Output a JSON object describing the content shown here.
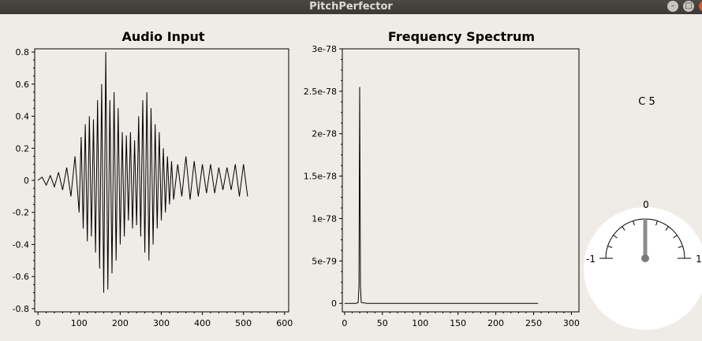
{
  "window": {
    "title": "PitchPerfector",
    "min_glyph": "–",
    "max_glyph": "□",
    "close_glyph": "×"
  },
  "note": "C 5",
  "chart_data": [
    {
      "type": "line",
      "title": "Audio Input",
      "xlabel": "",
      "ylabel": "",
      "xlim": [
        -8,
        610
      ],
      "ylim": [
        -0.82,
        0.82
      ],
      "x_ticks": [
        0,
        100,
        200,
        300,
        400,
        500,
        600
      ],
      "y_ticks": [
        0.8,
        0.6,
        0.4,
        0.2,
        0,
        -0.2,
        -0.4,
        -0.6,
        -0.8
      ],
      "series": [
        {
          "x": [
            0,
            10,
            20,
            30,
            40,
            50,
            60,
            70,
            80,
            90,
            100,
            105,
            110,
            115,
            120,
            125,
            130,
            135,
            140,
            145,
            150,
            155,
            160,
            165,
            170,
            175,
            180,
            185,
            190,
            195,
            200,
            205,
            210,
            215,
            220,
            225,
            230,
            235,
            240,
            245,
            250,
            255,
            260,
            265,
            270,
            275,
            280,
            285,
            290,
            295,
            300,
            305,
            310,
            315,
            320,
            325,
            330,
            340,
            350,
            360,
            370,
            380,
            390,
            400,
            410,
            420,
            430,
            440,
            450,
            460,
            470,
            480,
            490,
            500,
            510
          ],
          "y": [
            0,
            0.02,
            -0.03,
            0.03,
            -0.04,
            0.05,
            -0.06,
            0.08,
            -0.1,
            0.15,
            -0.2,
            0.27,
            -0.3,
            0.35,
            -0.38,
            0.4,
            -0.35,
            0.38,
            -0.45,
            0.5,
            -0.55,
            0.6,
            -0.7,
            0.8,
            -0.68,
            0.5,
            -0.58,
            0.55,
            -0.5,
            0.45,
            -0.4,
            0.3,
            -0.35,
            0.28,
            -0.25,
            0.3,
            -0.3,
            0.25,
            -0.28,
            0.4,
            -0.35,
            0.5,
            -0.45,
            0.55,
            -0.5,
            0.45,
            -0.4,
            0.35,
            -0.3,
            0.3,
            -0.25,
            0.2,
            -0.2,
            0.15,
            -0.15,
            0.12,
            -0.12,
            0.1,
            -0.1,
            0.15,
            -0.12,
            0.12,
            -0.1,
            0.1,
            -0.08,
            0.1,
            -0.08,
            0.08,
            -0.06,
            0.08,
            -0.06,
            0.1,
            -0.1,
            0.1,
            -0.1
          ]
        }
      ]
    },
    {
      "type": "line",
      "title": "Frequency Spectrum",
      "xlabel": "",
      "ylabel": "",
      "xlim": [
        -3,
        310
      ],
      "ylim": [
        -1e-79,
        3e-78
      ],
      "x_ticks": [
        0,
        50,
        100,
        150,
        200,
        250,
        300
      ],
      "y_ticks": [
        3e-78,
        2.5e-78,
        2e-78,
        1.5e-78,
        1e-78,
        5e-79,
        0
      ],
      "y_tick_labels": [
        "3e-78",
        "2.5e-78",
        "2e-78",
        "1.5e-78",
        "1e-78",
        "5e-79",
        "0"
      ],
      "series": [
        {
          "x": [
            0,
            15,
            18,
            19,
            20,
            21,
            22,
            30,
            100,
            200,
            256
          ],
          "y": [
            0,
            0,
            1e-80,
            2e-79,
            2.55e-78,
            2e-79,
            1e-80,
            0,
            0,
            0,
            0
          ]
        }
      ]
    }
  ],
  "gauge": {
    "min_label": "-1",
    "center_label": "0",
    "max_label": "1",
    "min": -1,
    "max": 1,
    "value": 0
  }
}
